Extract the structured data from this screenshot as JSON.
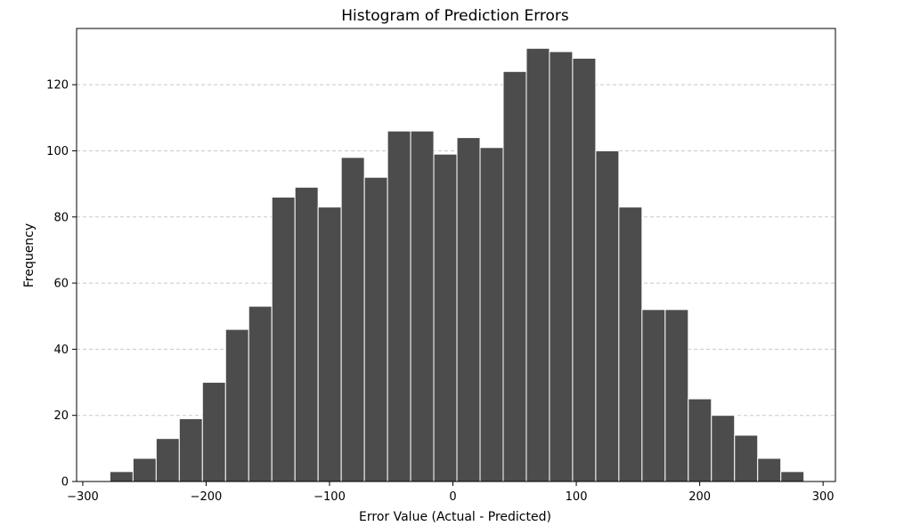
{
  "chart_data": {
    "type": "bar",
    "title": "Histogram of Prediction Errors",
    "xlabel": "Error Value (Actual - Predicted)",
    "ylabel": "Frequency",
    "xlim": [
      -305,
      310
    ],
    "ylim": [
      0,
      137
    ],
    "x_ticks": [
      -300,
      -200,
      -100,
      0,
      100,
      200,
      300
    ],
    "x_tick_labels": [
      "−300",
      "−200",
      "−100",
      "0",
      "100",
      "200",
      "300"
    ],
    "y_ticks": [
      0,
      20,
      40,
      60,
      80,
      100,
      120
    ],
    "y_tick_labels": [
      "0",
      "20",
      "40",
      "60",
      "80",
      "100",
      "120"
    ],
    "grid": "horizontal dashed",
    "bin_width": 18.75,
    "bin_edges_start": -278,
    "values": [
      3,
      7,
      13,
      19,
      30,
      46,
      53,
      86,
      89,
      83,
      98,
      92,
      106,
      106,
      99,
      104,
      101,
      124,
      131,
      130,
      128,
      100,
      83,
      52,
      52,
      25,
      20,
      14,
      7,
      3
    ],
    "colors": {
      "bar_fill": "#4c4c4c",
      "bar_edge": "#ffffff",
      "grid": "#c8c8c8",
      "axis": "#000000"
    }
  }
}
